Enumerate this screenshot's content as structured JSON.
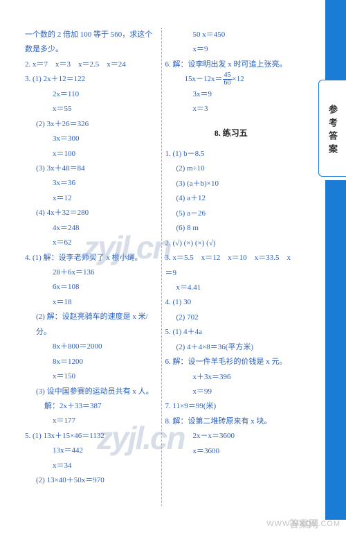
{
  "colors": {
    "text": "#2a5fb8",
    "accent": "#1b7cd6",
    "bg": "#ffffff"
  },
  "watermarks": {
    "main": "zyjl.cn",
    "url": "WWW.MXQE.COM",
    "badge": "答案网"
  },
  "tab_label": "参考答案",
  "page_number": "177",
  "section_title": "8. 练习五",
  "left": [
    {
      "t": "一个数的 2 倍加 100 等于 560，求这个数是多少。",
      "c": ""
    },
    {
      "t": "2. x＝7　x＝3　x＝2.5　x＝24",
      "c": ""
    },
    {
      "t": "3. (1) 2x＋12＝122",
      "c": ""
    },
    {
      "t": "2x＝110",
      "c": "indent3"
    },
    {
      "t": "x＝55",
      "c": "indent3"
    },
    {
      "t": "(2) 3x＋26＝326",
      "c": "indent1"
    },
    {
      "t": "3x＝300",
      "c": "indent3"
    },
    {
      "t": "x＝100",
      "c": "indent3"
    },
    {
      "t": "(3) 3x＋48＝84",
      "c": "indent1"
    },
    {
      "t": "3x＝36",
      "c": "indent3"
    },
    {
      "t": "x＝12",
      "c": "indent3"
    },
    {
      "t": "(4) 4x＋32＝280",
      "c": "indent1"
    },
    {
      "t": "4x＝248",
      "c": "indent3"
    },
    {
      "t": "x＝62",
      "c": "indent3"
    },
    {
      "t": "4. (1) 解：设李老师买了 x 根小绳。",
      "c": ""
    },
    {
      "t": "28＋6x＝136",
      "c": "indent3"
    },
    {
      "t": "6x＝108",
      "c": "indent3"
    },
    {
      "t": "x＝18",
      "c": "indent3"
    },
    {
      "t": "(2) 解：设赵亮骑车的速度是 x 米/分。",
      "c": "indent1"
    },
    {
      "t": "8x＋800＝2000",
      "c": "indent3"
    },
    {
      "t": "8x＝1200",
      "c": "indent3"
    },
    {
      "t": "x＝150",
      "c": "indent3"
    },
    {
      "t": "(3) 设中国参赛的运动员共有 x 人。",
      "c": "indent1"
    },
    {
      "t": "解：2x＋33＝387",
      "c": "indent2"
    },
    {
      "t": "x＝177",
      "c": "indent3"
    },
    {
      "t": "5. (1) 13x＋15×46＝1132",
      "c": ""
    },
    {
      "t": "13x＝442",
      "c": "indent3"
    },
    {
      "t": "x＝34",
      "c": "indent3"
    },
    {
      "t": "(2) 13×40＋50x＝970",
      "c": "indent1"
    }
  ],
  "right_top": [
    {
      "t": "50 x＝450",
      "c": "indent3"
    },
    {
      "t": "x＝9",
      "c": "indent3"
    },
    {
      "t": "6. 解：设李明出发 x 时可追上张亮。",
      "c": ""
    }
  ],
  "right_frac": {
    "prefix": "15x－12x＝",
    "num": "45",
    "den": "60",
    "suffix": "×12",
    "c": "indent2"
  },
  "right_mid": [
    {
      "t": "3x＝9",
      "c": "indent3"
    },
    {
      "t": "x＝3",
      "c": "indent3"
    }
  ],
  "right_bottom": [
    {
      "t": "1. (1) b－8.5",
      "c": ""
    },
    {
      "t": "(2) m÷10",
      "c": "indent1"
    },
    {
      "t": "(3) (a＋b)×10",
      "c": "indent1"
    },
    {
      "t": "(4) a＋12",
      "c": "indent1"
    },
    {
      "t": "(5) a－26",
      "c": "indent1"
    },
    {
      "t": "(6) 8 m",
      "c": "indent1"
    },
    {
      "t": "2. (√) (×) (×) (√)",
      "c": ""
    },
    {
      "t": "3. x＝5.5　x＝12　x＝10　x＝33.5　x＝9",
      "c": ""
    },
    {
      "t": "x＝4.41",
      "c": "indent1"
    },
    {
      "t": "4. (1) 30",
      "c": ""
    },
    {
      "t": "(2) 702",
      "c": "indent1"
    },
    {
      "t": "5. (1) 4＋4a",
      "c": ""
    },
    {
      "t": "(2) 4＋4×8＝36(平方米)",
      "c": "indent1"
    },
    {
      "t": "6. 解：设一件羊毛衫的价钱是 x 元。",
      "c": ""
    },
    {
      "t": "x＋3x＝396",
      "c": "indent3"
    },
    {
      "t": "x＝99",
      "c": "indent3"
    },
    {
      "t": "7. 11×9＝99(米)",
      "c": ""
    },
    {
      "t": "8. 解：设第二堆砖原来有 x 块。",
      "c": ""
    },
    {
      "t": "2x－x＝3600",
      "c": "indent3"
    },
    {
      "t": "x＝3600",
      "c": "indent3"
    }
  ]
}
